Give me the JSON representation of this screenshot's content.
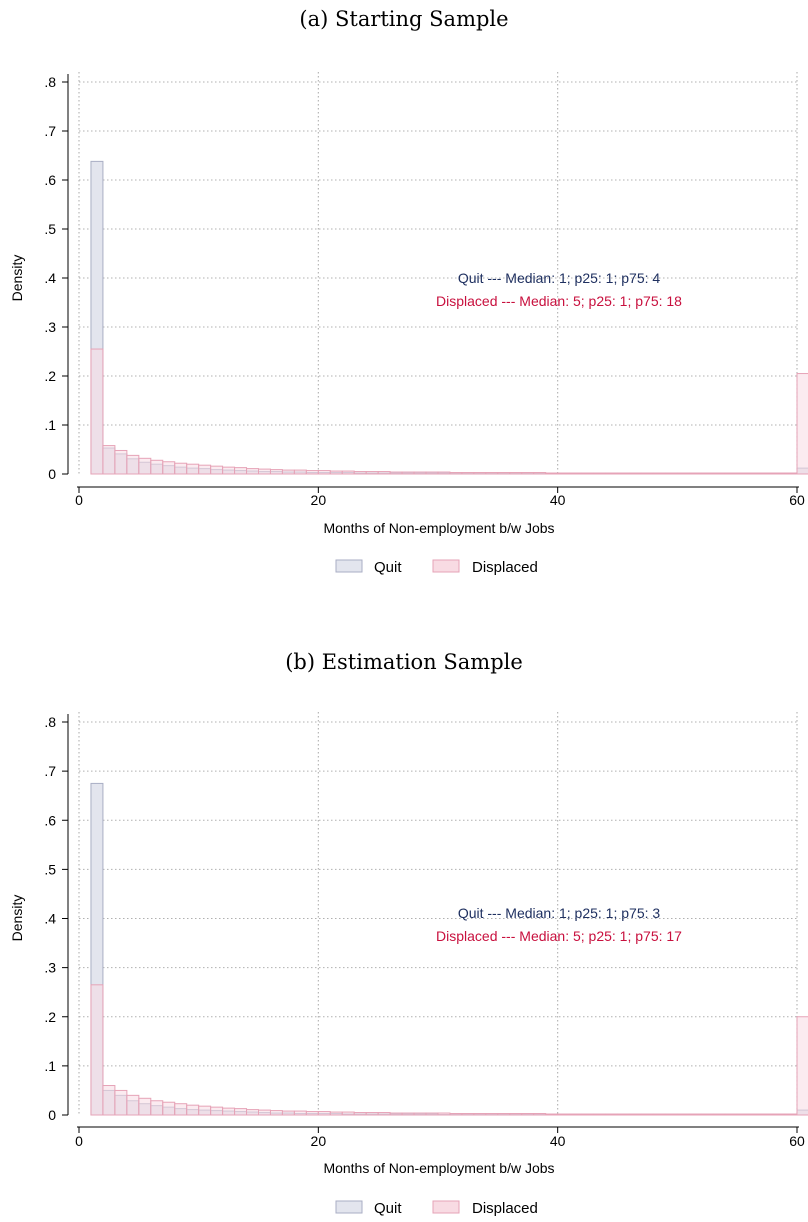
{
  "colors": {
    "quit_fill": "#e3e5ee",
    "quit_stroke": "#a9aec4",
    "displaced_fill": "#f8dbe3",
    "displaced_stroke": "#e6a3b7",
    "overlap_fill": "#dec6d3",
    "quit_note": "#1f3060",
    "displaced_note": "#c8103e",
    "grid": "#b0b0b0"
  },
  "chart_data": [
    {
      "type": "bar",
      "title": "(a) Starting Sample",
      "xlabel": "Months of Non-employment b/w Jobs",
      "ylabel": "Density",
      "xlim": [
        0,
        60
      ],
      "ylim": [
        0,
        0.8
      ],
      "xticks": [
        0,
        20,
        40,
        60
      ],
      "xtick_labels": [
        "0",
        "20",
        "40",
        "60"
      ],
      "yticks": [
        0,
        0.1,
        0.2,
        0.3,
        0.4,
        0.5,
        0.6,
        0.7,
        0.8
      ],
      "ytick_labels": [
        "0",
        ".1",
        ".2",
        ".3",
        ".4",
        ".5",
        ".6",
        ".7",
        ".8"
      ],
      "grid": true,
      "legend_position": "bottom",
      "bin_width": 1,
      "series": [
        {
          "name": "Quit",
          "x": [
            1,
            2,
            3,
            4,
            5,
            6,
            7,
            8,
            9,
            10,
            11,
            12,
            13,
            14,
            15,
            16,
            17,
            18,
            19,
            20,
            21,
            22,
            23,
            24,
            25,
            26,
            27,
            28,
            29,
            30,
            31,
            32,
            33,
            34,
            35,
            36,
            37,
            38,
            39,
            40,
            41,
            42,
            43,
            44,
            45,
            46,
            47,
            48,
            49,
            50,
            51,
            52,
            53,
            54,
            55,
            56,
            57,
            58,
            59,
            60
          ],
          "values": [
            0.638,
            0.053,
            0.041,
            0.031,
            0.024,
            0.02,
            0.017,
            0.014,
            0.012,
            0.011,
            0.009,
            0.008,
            0.007,
            0.006,
            0.005,
            0.005,
            0.004,
            0.004,
            0.003,
            0.003,
            0.003,
            0.003,
            0.002,
            0.002,
            0.002,
            0.002,
            0.002,
            0.002,
            0.002,
            0.002,
            0.001,
            0.001,
            0.001,
            0.001,
            0.001,
            0.001,
            0.001,
            0.001,
            0.001,
            0.001,
            0.001,
            0.001,
            0.001,
            0.001,
            0.001,
            0.001,
            0.001,
            0.001,
            0.001,
            0.001,
            0.001,
            0.001,
            0.001,
            0.001,
            0.001,
            0.001,
            0.001,
            0.001,
            0.001,
            0.012
          ]
        },
        {
          "name": "Displaced",
          "x": [
            1,
            2,
            3,
            4,
            5,
            6,
            7,
            8,
            9,
            10,
            11,
            12,
            13,
            14,
            15,
            16,
            17,
            18,
            19,
            20,
            21,
            22,
            23,
            24,
            25,
            26,
            27,
            28,
            29,
            30,
            31,
            32,
            33,
            34,
            35,
            36,
            37,
            38,
            39,
            40,
            41,
            42,
            43,
            44,
            45,
            46,
            47,
            48,
            49,
            50,
            51,
            52,
            53,
            54,
            55,
            56,
            57,
            58,
            59,
            60
          ],
          "values": [
            0.255,
            0.058,
            0.048,
            0.038,
            0.032,
            0.028,
            0.025,
            0.022,
            0.02,
            0.018,
            0.016,
            0.014,
            0.013,
            0.011,
            0.01,
            0.009,
            0.008,
            0.008,
            0.007,
            0.007,
            0.006,
            0.006,
            0.005,
            0.005,
            0.005,
            0.004,
            0.004,
            0.004,
            0.004,
            0.004,
            0.003,
            0.003,
            0.003,
            0.003,
            0.003,
            0.003,
            0.003,
            0.003,
            0.002,
            0.002,
            0.002,
            0.002,
            0.002,
            0.002,
            0.002,
            0.002,
            0.002,
            0.002,
            0.002,
            0.002,
            0.002,
            0.002,
            0.002,
            0.002,
            0.002,
            0.002,
            0.002,
            0.002,
            0.002,
            0.205
          ]
        }
      ],
      "annotations": [
        {
          "text_quit": "Quit",
          "text_sep": "---",
          "text_stats": "Median: 1; p25: 1; p75: 4"
        },
        {
          "text_displaced": "Displaced",
          "text_sep": "---",
          "text_stats": "Median: 5; p25: 1; p75: 18"
        }
      ]
    },
    {
      "type": "bar",
      "title": "(b) Estimation Sample",
      "xlabel": "Months of Non-employment b/w Jobs",
      "ylabel": "Density",
      "xlim": [
        0,
        60
      ],
      "ylim": [
        0,
        0.8
      ],
      "xticks": [
        0,
        20,
        40,
        60
      ],
      "xtick_labels": [
        "0",
        "20",
        "40",
        "60"
      ],
      "yticks": [
        0,
        0.1,
        0.2,
        0.3,
        0.4,
        0.5,
        0.6,
        0.7,
        0.8
      ],
      "ytick_labels": [
        "0",
        ".1",
        ".2",
        ".3",
        ".4",
        ".5",
        ".6",
        ".7",
        ".8"
      ],
      "grid": true,
      "legend_position": "bottom",
      "bin_width": 1,
      "series": [
        {
          "name": "Quit",
          "x": [
            1,
            2,
            3,
            4,
            5,
            6,
            7,
            8,
            9,
            10,
            11,
            12,
            13,
            14,
            15,
            16,
            17,
            18,
            19,
            20,
            21,
            22,
            23,
            24,
            25,
            26,
            27,
            28,
            29,
            30,
            31,
            32,
            33,
            34,
            35,
            36,
            37,
            38,
            39,
            40,
            41,
            42,
            43,
            44,
            45,
            46,
            47,
            48,
            49,
            50,
            51,
            52,
            53,
            54,
            55,
            56,
            57,
            58,
            59,
            60
          ],
          "values": [
            0.675,
            0.05,
            0.04,
            0.029,
            0.023,
            0.019,
            0.016,
            0.013,
            0.011,
            0.01,
            0.009,
            0.008,
            0.007,
            0.006,
            0.005,
            0.004,
            0.004,
            0.003,
            0.003,
            0.003,
            0.003,
            0.002,
            0.002,
            0.002,
            0.002,
            0.002,
            0.002,
            0.002,
            0.002,
            0.001,
            0.001,
            0.001,
            0.001,
            0.001,
            0.001,
            0.001,
            0.001,
            0.001,
            0.001,
            0.001,
            0.001,
            0.001,
            0.001,
            0.001,
            0.001,
            0.001,
            0.001,
            0.001,
            0.001,
            0.001,
            0.001,
            0.001,
            0.001,
            0.001,
            0.001,
            0.001,
            0.001,
            0.001,
            0.001,
            0.01
          ]
        },
        {
          "name": "Displaced",
          "x": [
            1,
            2,
            3,
            4,
            5,
            6,
            7,
            8,
            9,
            10,
            11,
            12,
            13,
            14,
            15,
            16,
            17,
            18,
            19,
            20,
            21,
            22,
            23,
            24,
            25,
            26,
            27,
            28,
            29,
            30,
            31,
            32,
            33,
            34,
            35,
            36,
            37,
            38,
            39,
            40,
            41,
            42,
            43,
            44,
            45,
            46,
            47,
            48,
            49,
            50,
            51,
            52,
            53,
            54,
            55,
            56,
            57,
            58,
            59,
            60
          ],
          "values": [
            0.265,
            0.06,
            0.05,
            0.04,
            0.034,
            0.029,
            0.026,
            0.023,
            0.02,
            0.018,
            0.016,
            0.014,
            0.013,
            0.011,
            0.01,
            0.009,
            0.008,
            0.008,
            0.007,
            0.007,
            0.006,
            0.006,
            0.005,
            0.005,
            0.005,
            0.004,
            0.004,
            0.004,
            0.004,
            0.004,
            0.003,
            0.003,
            0.003,
            0.003,
            0.003,
            0.003,
            0.003,
            0.003,
            0.002,
            0.002,
            0.002,
            0.002,
            0.002,
            0.002,
            0.002,
            0.002,
            0.002,
            0.002,
            0.002,
            0.002,
            0.002,
            0.002,
            0.002,
            0.002,
            0.002,
            0.002,
            0.002,
            0.002,
            0.002,
            0.2
          ]
        }
      ],
      "annotations": [
        {
          "text_quit": "Quit",
          "text_sep": "---",
          "text_stats": "Median: 1; p25: 1; p75: 3"
        },
        {
          "text_displaced": "Displaced",
          "text_sep": "---",
          "text_stats": "Median: 5; p25: 1; p75: 17"
        }
      ]
    }
  ]
}
